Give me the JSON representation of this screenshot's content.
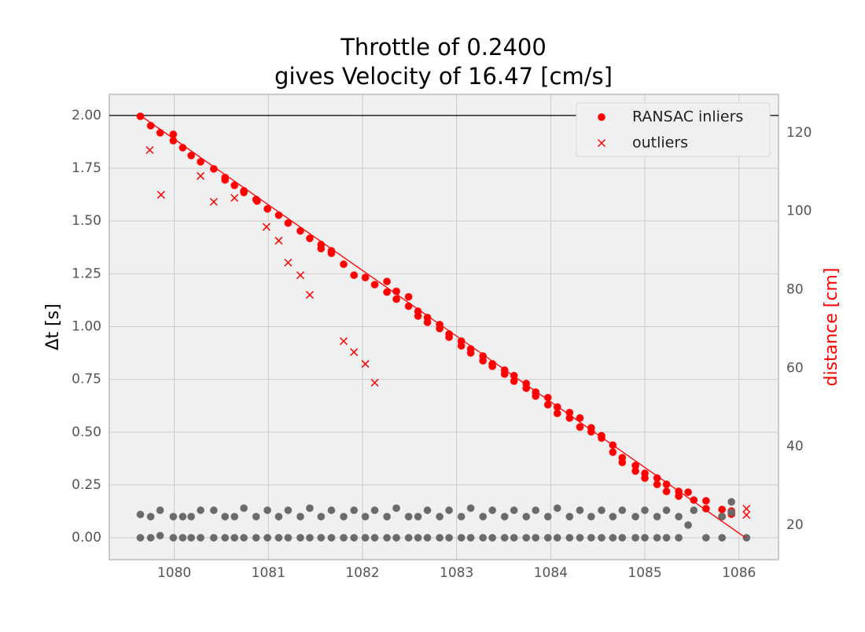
{
  "chart_data": {
    "type": "scatter",
    "title": [
      "Throttle of 0.2400",
      "gives Velocity of 16.47 [cm/s]"
    ],
    "ylabel": "Δt [s]",
    "y2label": "distance [cm]",
    "y2label_color": "#ff0000",
    "xlim": [
      1079.31,
      1086.42
    ],
    "ylim": [
      -0.104,
      2.1
    ],
    "y2lim": [
      11.2,
      129.8
    ],
    "xticks": [
      1080,
      1081,
      1082,
      1083,
      1084,
      1085,
      1086
    ],
    "yticks": [
      {
        "value": 0,
        "label": "0.00"
      },
      {
        "value": 0.25,
        "label": "0.25"
      },
      {
        "value": 0.5,
        "label": "0.50"
      },
      {
        "value": 0.75,
        "label": "0.75"
      },
      {
        "value": 1,
        "label": "1.00"
      },
      {
        "value": 1.25,
        "label": "1.25"
      },
      {
        "value": 1.5,
        "label": "1.50"
      },
      {
        "value": 1.75,
        "label": "1.75"
      },
      {
        "value": 2,
        "label": "2.00"
      }
    ],
    "y2ticks": [
      20,
      40,
      60,
      80,
      100,
      120
    ],
    "grid": true,
    "legend": "upper right",
    "hline": {
      "value": 2.0,
      "color": "#000000"
    },
    "series": [
      {
        "name": "RANSAC inliers",
        "color": "#ff0000",
        "marker": "o",
        "axis": "y2",
        "x": [
          1079.64,
          1079.75,
          1079.85,
          1079.99,
          1079.99,
          1080.09,
          1080.18,
          1080.28,
          1080.42,
          1080.54,
          1080.54,
          1080.64,
          1080.74,
          1080.74,
          1080.87,
          1080.88,
          1080.99,
          1081.11,
          1081.21,
          1081.34,
          1081.44,
          1081.56,
          1081.56,
          1081.67,
          1081.67,
          1081.8,
          1081.91,
          1082.03,
          1082.13,
          1082.26,
          1082.26,
          1082.36,
          1082.36,
          1082.49,
          1082.49,
          1082.59,
          1082.59,
          1082.69,
          1082.69,
          1082.82,
          1082.82,
          1082.92,
          1082.92,
          1083.05,
          1083.05,
          1083.15,
          1083.15,
          1083.28,
          1083.28,
          1083.38,
          1083.38,
          1083.51,
          1083.51,
          1083.61,
          1083.61,
          1083.74,
          1083.74,
          1083.84,
          1083.84,
          1083.97,
          1083.97,
          1084.07,
          1084.07,
          1084.2,
          1084.2,
          1084.31,
          1084.31,
          1084.43,
          1084.43,
          1084.54,
          1084.54,
          1084.66,
          1084.66,
          1084.76,
          1084.76,
          1084.9,
          1084.9,
          1085.0,
          1085.0,
          1085.13,
          1085.13,
          1085.23,
          1085.23,
          1085.36,
          1085.36,
          1085.46,
          1085.52,
          1085.65,
          1085.65,
          1085.82,
          1085.82,
          1085.92,
          1085.92
        ],
        "values": [
          124.2,
          121.8,
          120.0,
          119.6,
          118.0,
          116.2,
          114.2,
          112.6,
          110.8,
          108.6,
          108.0,
          106.6,
          105.2,
          104.8,
          103.0,
          102.6,
          100.6,
          99.0,
          97.0,
          95.0,
          93.1,
          91.5,
          90.5,
          89.9,
          89.3,
          86.5,
          83.7,
          83.1,
          81.3,
          82.1,
          79.4,
          79.6,
          77.6,
          78.2,
          75.8,
          74.5,
          73.3,
          72.9,
          71.7,
          71.1,
          70.1,
          68.7,
          67.9,
          66.9,
          65.7,
          64.9,
          63.9,
          63.1,
          61.9,
          61.1,
          60.5,
          59.5,
          58.5,
          58.1,
          56.7,
          56.1,
          54.9,
          53.9,
          52.9,
          52.5,
          50.7,
          50.1,
          48.5,
          48.7,
          47.3,
          47.3,
          45.0,
          44.8,
          43.8,
          42.8,
          42.2,
          40.4,
          38.6,
          37.2,
          36.0,
          35.2,
          33.8,
          33.2,
          32.0,
          32.0,
          30.4,
          30.4,
          28.6,
          28.6,
          27.4,
          28.4,
          26.4,
          26.2,
          24.2,
          24.0,
          22.2,
          23.6,
          22.8
        ]
      },
      {
        "name": "outliers",
        "color": "#ff0000",
        "marker": "x",
        "axis": "y2",
        "x": [
          1079.74,
          1079.86,
          1080.28,
          1080.42,
          1080.64,
          1080.98,
          1081.11,
          1081.21,
          1081.34,
          1081.44,
          1081.8,
          1081.91,
          1082.03,
          1082.13,
          1086.08,
          1086.08
        ],
        "values": [
          115.6,
          104.2,
          109.0,
          102.4,
          103.4,
          96.0,
          92.5,
          86.9,
          83.7,
          78.7,
          66.9,
          64.1,
          61.1,
          56.3,
          24.2,
          22.6
        ]
      },
      {
        "color": "#6a6a6a",
        "marker": "o",
        "x": [
          1079.64,
          1079.75,
          1079.85,
          1079.99,
          1080.09,
          1080.18,
          1080.28,
          1080.42,
          1080.54,
          1080.64,
          1080.74,
          1080.87,
          1080.99,
          1081.11,
          1081.21,
          1081.34,
          1081.44,
          1081.56,
          1081.67,
          1081.8,
          1081.91,
          1082.03,
          1082.13,
          1082.26,
          1082.36,
          1082.49,
          1082.59,
          1082.69,
          1082.82,
          1082.92,
          1083.05,
          1083.15,
          1083.28,
          1083.38,
          1083.51,
          1083.61,
          1083.74,
          1083.84,
          1083.97,
          1084.07,
          1084.2,
          1084.31,
          1084.43,
          1084.54,
          1084.66,
          1084.76,
          1084.9,
          1085.0,
          1085.13,
          1085.23,
          1085.36,
          1085.46,
          1085.52,
          1085.82,
          1085.92,
          1085.92,
          1079.64,
          1079.75,
          1079.85,
          1079.99,
          1080.09,
          1080.18,
          1080.28,
          1080.42,
          1080.54,
          1080.64,
          1080.74,
          1080.87,
          1080.99,
          1081.11,
          1081.21,
          1081.34,
          1081.44,
          1081.56,
          1081.67,
          1081.8,
          1081.91,
          1082.03,
          1082.13,
          1082.26,
          1082.36,
          1082.49,
          1082.59,
          1082.69,
          1082.82,
          1082.92,
          1083.05,
          1083.15,
          1083.28,
          1083.38,
          1083.51,
          1083.61,
          1083.74,
          1083.84,
          1083.97,
          1084.07,
          1084.2,
          1084.31,
          1084.43,
          1084.54,
          1084.66,
          1084.76,
          1084.9,
          1085.0,
          1085.13,
          1085.23,
          1085.36,
          1085.65,
          1085.82,
          1086.08
        ],
        "values": [
          0.11,
          0.1,
          0.13,
          0.1,
          0.1,
          0.1,
          0.13,
          0.13,
          0.1,
          0.1,
          0.14,
          0.1,
          0.13,
          0.1,
          0.13,
          0.1,
          0.14,
          0.1,
          0.13,
          0.1,
          0.13,
          0.1,
          0.13,
          0.1,
          0.14,
          0.1,
          0.1,
          0.13,
          0.1,
          0.13,
          0.1,
          0.14,
          0.1,
          0.13,
          0.1,
          0.13,
          0.1,
          0.13,
          0.1,
          0.14,
          0.1,
          0.13,
          0.1,
          0.13,
          0.1,
          0.13,
          0.1,
          0.13,
          0.1,
          0.13,
          0.1,
          0.06,
          0.13,
          0.1,
          0.17,
          0.12,
          0,
          0,
          0.01,
          0,
          0,
          0,
          0,
          0,
          0,
          0,
          0,
          0,
          0,
          0,
          0,
          0,
          0,
          0,
          0,
          0,
          0,
          0,
          0,
          0,
          0,
          0,
          0,
          0,
          0,
          0,
          0,
          0,
          0,
          0,
          0,
          0,
          0,
          0,
          0,
          0,
          0,
          0,
          0,
          0,
          0,
          0,
          0,
          0,
          0,
          0,
          0,
          0,
          0,
          0
        ]
      },
      {
        "color": "#ff0000",
        "marker": "line",
        "axis": "y2",
        "x": [
          1079.64,
          1086.07
        ],
        "values": [
          124.4,
          16.8
        ]
      }
    ]
  }
}
